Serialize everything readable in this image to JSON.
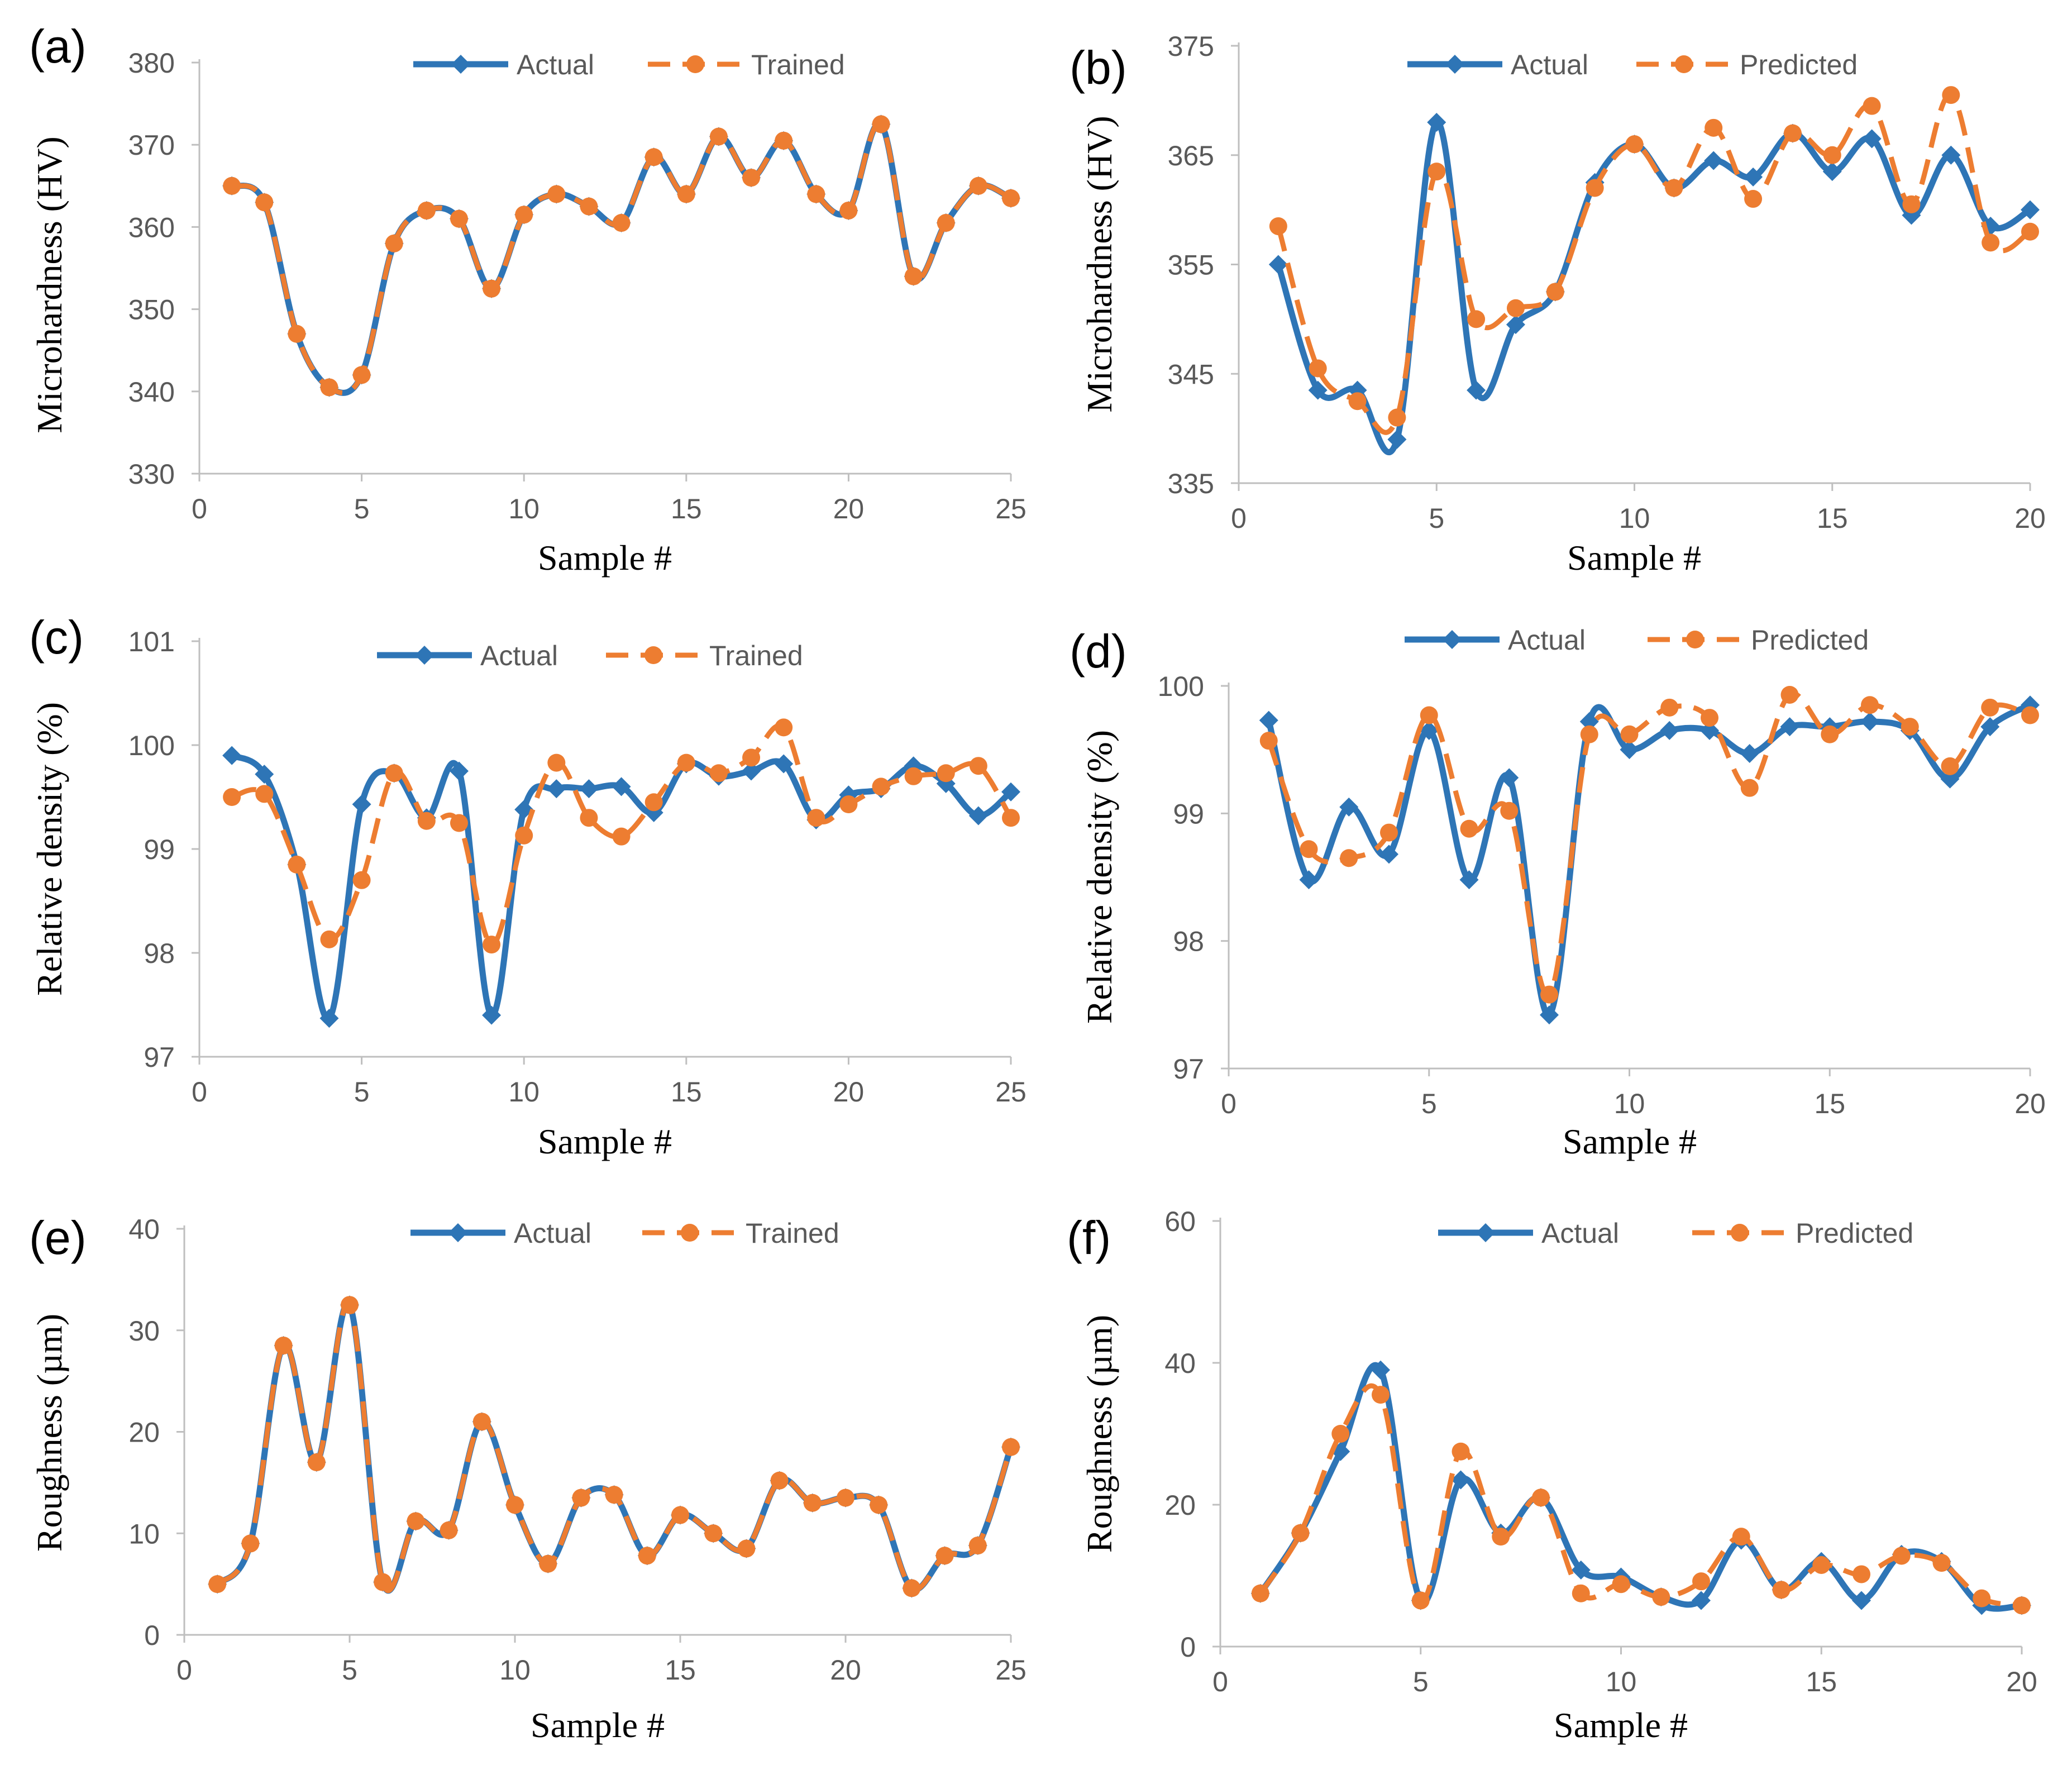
{
  "colors": {
    "actual": "#2E75B6",
    "predicted": "#ED7D31",
    "axis": "#BFBFBF",
    "tick": "#595959",
    "text": "#000000"
  },
  "chart_data": [
    {
      "panel": "(a)",
      "type": "line",
      "xlabel": "Sample #",
      "ylabel": "Microhardness (HV)",
      "xlim": [
        0,
        25
      ],
      "ylim": [
        330,
        380
      ],
      "xticks": [
        "0",
        "5",
        "10",
        "15",
        "20",
        "25"
      ],
      "yticks": [
        "330",
        "340",
        "350",
        "360",
        "370",
        "380"
      ],
      "series": [
        {
          "name": "Actual",
          "x": [
            1,
            2,
            3,
            4,
            5,
            6,
            7,
            8,
            9,
            10,
            11,
            12,
            13,
            14,
            15,
            16,
            17,
            18,
            19,
            20,
            21,
            22,
            23,
            24,
            25
          ],
          "values": [
            365,
            363,
            347,
            340.5,
            342,
            358,
            362,
            361,
            352.5,
            361.5,
            364,
            362.5,
            360.5,
            368.5,
            364,
            371,
            366,
            370.5,
            364,
            362,
            372.5,
            354,
            360.5,
            365,
            363.5
          ]
        },
        {
          "name": "Trained",
          "x": [
            1,
            2,
            3,
            4,
            5,
            6,
            7,
            8,
            9,
            10,
            11,
            12,
            13,
            14,
            15,
            16,
            17,
            18,
            19,
            20,
            21,
            22,
            23,
            24,
            25
          ],
          "values": [
            365,
            363,
            347,
            340.5,
            342,
            358,
            362,
            361,
            352.5,
            361.5,
            364,
            362.5,
            360.5,
            368.5,
            364,
            371,
            366,
            370.5,
            364,
            362,
            372.5,
            354,
            360.5,
            365,
            363.5
          ]
        }
      ]
    },
    {
      "panel": "(b)",
      "type": "line",
      "xlabel": "Sample #",
      "ylabel": "Microhardness (HV)",
      "xlim": [
        0,
        20
      ],
      "ylim": [
        335,
        375
      ],
      "xticks": [
        "0",
        "5",
        "10",
        "15",
        "20"
      ],
      "yticks": [
        "335",
        "345",
        "355",
        "365",
        "375"
      ],
      "series": [
        {
          "name": "Actual",
          "x": [
            1,
            2,
            3,
            4,
            5,
            6,
            7,
            8,
            9,
            10,
            11,
            12,
            13,
            14,
            15,
            16,
            17,
            18,
            19,
            20
          ],
          "values": [
            355,
            343.5,
            343.5,
            339,
            368,
            343.5,
            349.5,
            352.5,
            362.5,
            366,
            362,
            364.5,
            363,
            367,
            363.5,
            366.5,
            359.5,
            365,
            358.5,
            360
          ]
        },
        {
          "name": "Predicted",
          "x": [
            1,
            2,
            3,
            4,
            5,
            6,
            7,
            8,
            9,
            10,
            11,
            12,
            13,
            14,
            15,
            16,
            17,
            18,
            19,
            20
          ],
          "values": [
            358.5,
            345.5,
            342.5,
            341,
            363.5,
            350,
            351,
            352.5,
            362,
            366,
            362,
            367.5,
            361,
            367,
            365,
            369.5,
            360.5,
            370.5,
            357,
            358
          ]
        }
      ]
    },
    {
      "panel": "(c)",
      "type": "line",
      "xlabel": "Sample #",
      "ylabel": "Relative density (%)",
      "xlim": [
        0,
        25
      ],
      "ylim": [
        97,
        101
      ],
      "xticks": [
        "0",
        "5",
        "10",
        "15",
        "20",
        "25"
      ],
      "yticks": [
        "97",
        "98",
        "99",
        "100",
        "101"
      ],
      "series": [
        {
          "name": "Actual",
          "x": [
            1,
            2,
            3,
            4,
            5,
            6,
            7,
            8,
            9,
            10,
            11,
            12,
            13,
            14,
            15,
            16,
            17,
            18,
            19,
            20,
            21,
            22,
            23,
            24,
            25
          ],
          "values": [
            99.9,
            99.72,
            98.85,
            97.37,
            99.43,
            99.73,
            99.3,
            99.75,
            97.4,
            99.38,
            99.58,
            99.58,
            99.6,
            99.35,
            99.82,
            99.7,
            99.75,
            99.82,
            99.28,
            99.52,
            99.58,
            99.8,
            99.63,
            99.32,
            99.55
          ]
        },
        {
          "name": "Trained",
          "x": [
            1,
            2,
            3,
            4,
            5,
            6,
            7,
            8,
            9,
            10,
            11,
            12,
            13,
            14,
            15,
            16,
            17,
            18,
            19,
            20,
            21,
            22,
            23,
            24,
            25
          ],
          "values": [
            99.5,
            99.53,
            98.85,
            98.13,
            98.7,
            99.73,
            99.27,
            99.25,
            98.08,
            99.13,
            99.83,
            99.3,
            99.12,
            99.45,
            99.83,
            99.73,
            99.88,
            100.17,
            99.3,
            99.43,
            99.6,
            99.7,
            99.73,
            99.8,
            99.3
          ]
        }
      ]
    },
    {
      "panel": "(d)",
      "type": "line",
      "xlabel": "Sample #",
      "ylabel": "Relative density (%)",
      "xlim": [
        0,
        20
      ],
      "ylim": [
        97,
        100
      ],
      "xticks": [
        "0",
        "5",
        "10",
        "15",
        "20"
      ],
      "yticks": [
        "97",
        "98",
        "99",
        "100"
      ],
      "series": [
        {
          "name": "Actual",
          "x": [
            1,
            2,
            3,
            4,
            5,
            6,
            7,
            8,
            9,
            10,
            11,
            12,
            13,
            14,
            15,
            16,
            17,
            18,
            19,
            20
          ],
          "values": [
            99.73,
            98.48,
            99.05,
            98.68,
            99.65,
            98.48,
            99.28,
            97.42,
            99.72,
            99.5,
            99.65,
            99.65,
            99.47,
            99.68,
            99.68,
            99.72,
            99.65,
            99.27,
            99.68,
            99.85
          ]
        },
        {
          "name": "Predicted",
          "x": [
            1,
            2,
            3,
            4,
            5,
            6,
            7,
            8,
            9,
            10,
            11,
            12,
            13,
            14,
            15,
            16,
            17,
            18,
            19,
            20
          ],
          "values": [
            99.57,
            98.72,
            98.65,
            98.85,
            99.77,
            98.88,
            99.02,
            97.58,
            99.62,
            99.62,
            99.83,
            99.75,
            99.2,
            99.93,
            99.62,
            99.85,
            99.68,
            99.37,
            99.83,
            99.77
          ]
        }
      ]
    },
    {
      "panel": "(e)",
      "type": "line",
      "xlabel": "Sample #",
      "ylabel": "Roughness (µm)",
      "xlim": [
        0,
        25
      ],
      "ylim": [
        0,
        40
      ],
      "xticks": [
        "0",
        "5",
        "10",
        "15",
        "20",
        "25"
      ],
      "yticks": [
        "0",
        "10",
        "20",
        "30",
        "40"
      ],
      "series": [
        {
          "name": "Actual",
          "x": [
            1,
            2,
            3,
            4,
            5,
            6,
            7,
            8,
            9,
            10,
            11,
            12,
            13,
            14,
            15,
            16,
            17,
            18,
            19,
            20,
            21,
            22,
            23,
            24,
            25
          ],
          "values": [
            5,
            9,
            28.5,
            17,
            32.5,
            5.2,
            11.2,
            10.3,
            21,
            12.8,
            7,
            13.5,
            13.8,
            7.8,
            11.8,
            10,
            8.5,
            15.2,
            13,
            13.5,
            12.8,
            4.6,
            7.8,
            8.8,
            18.5
          ]
        },
        {
          "name": "Trained",
          "x": [
            1,
            2,
            3,
            4,
            5,
            6,
            7,
            8,
            9,
            10,
            11,
            12,
            13,
            14,
            15,
            16,
            17,
            18,
            19,
            20,
            21,
            22,
            23,
            24,
            25
          ],
          "values": [
            5,
            9,
            28.5,
            17,
            32.5,
            5.2,
            11.2,
            10.3,
            21,
            12.8,
            7,
            13.5,
            13.8,
            7.8,
            11.8,
            10,
            8.5,
            15.2,
            13,
            13.5,
            12.8,
            4.6,
            7.8,
            8.8,
            18.5
          ]
        }
      ]
    },
    {
      "panel": "(f)",
      "type": "line",
      "xlabel": "Sample #",
      "ylabel": "Roughness (µm)",
      "xlim": [
        0,
        20
      ],
      "ylim": [
        0,
        60
      ],
      "xticks": [
        "0",
        "5",
        "10",
        "15",
        "20"
      ],
      "yticks": [
        "0",
        "20",
        "40",
        "60"
      ],
      "series": [
        {
          "name": "Actual",
          "x": [
            1,
            2,
            3,
            4,
            5,
            6,
            7,
            8,
            9,
            10,
            11,
            12,
            13,
            14,
            15,
            16,
            17,
            18,
            19,
            20
          ],
          "values": [
            7.5,
            16,
            27.5,
            39,
            6.5,
            23.5,
            16,
            21,
            10.8,
            9.8,
            7,
            6.5,
            15,
            8,
            12,
            6.5,
            13,
            12,
            5.8,
            5.8
          ]
        },
        {
          "name": "Predicted",
          "x": [
            1,
            2,
            3,
            4,
            5,
            6,
            7,
            8,
            9,
            10,
            11,
            12,
            13,
            14,
            15,
            16,
            17,
            18,
            19,
            20
          ],
          "values": [
            7.5,
            16,
            30,
            35.5,
            6.5,
            27.5,
            15.5,
            21,
            7.5,
            8.8,
            7,
            9.2,
            15.5,
            8,
            11.5,
            10.2,
            12.8,
            11.8,
            6.8,
            5.8
          ]
        }
      ]
    }
  ]
}
